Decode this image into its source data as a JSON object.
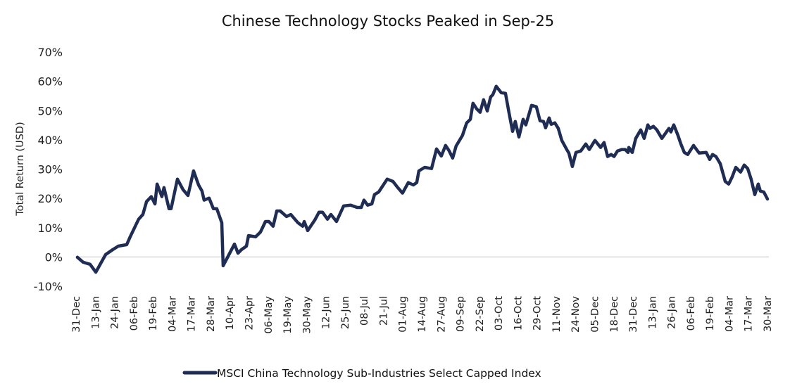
{
  "chart_data": {
    "type": "line",
    "title": "Chinese Technology Stocks Peaked in Sep-25",
    "xlabel": "",
    "ylabel": "Total Return (USD)",
    "ylim": [
      -10,
      70
    ],
    "yticks": [
      -10,
      0,
      10,
      20,
      30,
      40,
      50,
      60,
      70
    ],
    "ytick_labels": [
      "-10%",
      "0%",
      "10%",
      "20%",
      "30%",
      "40%",
      "50%",
      "60%",
      "70%"
    ],
    "xtick_labels": [
      "31-Dec",
      "13-Jan",
      "24-Jan",
      "06-Feb",
      "19-Feb",
      "04-Mar",
      "17-Mar",
      "28-Mar",
      "10-Apr",
      "23-Apr",
      "06-May",
      "19-May",
      "30-May",
      "12-Jun",
      "25-Jun",
      "08-Jul",
      "21-Jul",
      "01-Aug",
      "14-Aug",
      "27-Aug",
      "09-Sep",
      "22-Sep",
      "03-Oct",
      "16-Oct",
      "29-Oct",
      "11-Nov",
      "24-Nov",
      "05-Dec",
      "18-Dec",
      "31-Dec",
      "13-Jan",
      "26-Jan",
      "06-Feb",
      "19-Feb",
      "04-Mar",
      "17-Mar",
      "30-Mar"
    ],
    "x_units": "tick index (0 = first tick label, 36 = last tick label)",
    "grid": false,
    "zero_line": true,
    "legend_position": "bottom",
    "colors": {
      "line": "#1f2d54",
      "zero_line": "#d9d9d9"
    },
    "series": [
      {
        "name": "MSCI China Technology Sub-Industries Select Capped Index",
        "x": [
          0.07,
          0.37,
          0.73,
          1.03,
          1.54,
          1.91,
          2.2,
          2.64,
          2.82,
          3.26,
          3.48,
          3.67,
          3.92,
          4.11,
          4.22,
          4.47,
          4.58,
          4.84,
          4.95,
          5.28,
          5.57,
          5.83,
          6.12,
          6.38,
          6.56,
          6.67,
          6.93,
          7.15,
          7.33,
          7.59,
          7.66,
          8.25,
          8.43,
          8.61,
          8.87,
          8.98,
          9.35,
          9.6,
          9.86,
          10.04,
          10.26,
          10.45,
          10.63,
          10.96,
          11.18,
          11.55,
          11.8,
          11.88,
          12.06,
          12.43,
          12.65,
          12.83,
          13.09,
          13.27,
          13.56,
          13.93,
          14.3,
          14.63,
          14.85,
          14.99,
          15.18,
          15.4,
          15.54,
          15.76,
          16.2,
          16.5,
          16.75,
          17.0,
          17.3,
          17.56,
          17.74,
          17.85,
          18.15,
          18.51,
          18.77,
          19.02,
          19.24,
          19.43,
          19.61,
          19.79,
          20.12,
          20.34,
          20.53,
          20.67,
          20.86,
          21.04,
          21.22,
          21.41,
          21.59,
          21.7,
          21.88,
          22.14,
          22.36,
          22.54,
          22.73,
          22.87,
          23.06,
          23.28,
          23.42,
          23.72,
          23.97,
          24.16,
          24.34,
          24.45,
          24.63,
          24.74,
          24.93,
          25.11,
          25.29,
          25.55,
          25.66,
          25.84,
          26.03,
          26.28,
          26.54,
          26.72,
          27.02,
          27.31,
          27.49,
          27.68,
          27.86,
          28.01,
          28.19,
          28.41,
          28.59,
          28.74,
          28.78,
          28.96,
          29.14,
          29.4,
          29.58,
          29.77,
          29.88,
          30.06,
          30.24,
          30.5,
          30.87,
          30.97,
          31.12,
          31.34,
          31.49,
          31.67,
          31.85,
          32.15,
          32.44,
          32.81,
          32.99,
          33.14,
          33.32,
          33.54,
          33.8,
          33.98,
          34.16,
          34.35,
          34.6,
          34.79,
          34.97,
          35.15,
          35.34,
          35.52,
          35.63,
          35.81,
          36.0
        ],
        "values": [
          -0.1,
          -1.8,
          -2.5,
          -5.2,
          0.8,
          2.5,
          3.7,
          4.2,
          6.9,
          12.9,
          14.5,
          18.9,
          20.6,
          18.1,
          24.9,
          20.6,
          23.7,
          16.5,
          16.5,
          26.6,
          23.0,
          21.0,
          29.4,
          24.6,
          22.5,
          19.4,
          20.1,
          16.5,
          16.5,
          11.7,
          -3.0,
          4.4,
          1.3,
          2.5,
          3.7,
          7.3,
          6.9,
          8.5,
          12.1,
          12.1,
          10.5,
          15.7,
          15.7,
          13.8,
          14.5,
          11.7,
          10.5,
          12.1,
          9.0,
          12.6,
          15.3,
          15.3,
          12.9,
          14.5,
          12.1,
          17.4,
          17.7,
          16.9,
          16.9,
          19.4,
          17.7,
          18.1,
          21.3,
          22.2,
          26.6,
          25.8,
          23.7,
          21.8,
          25.4,
          24.6,
          25.4,
          29.4,
          30.6,
          30.2,
          36.9,
          34.5,
          38.1,
          36.2,
          33.8,
          37.9,
          41.5,
          45.8,
          47.0,
          52.5,
          50.6,
          49.4,
          53.7,
          49.9,
          54.7,
          55.4,
          58.3,
          56.1,
          55.9,
          49.4,
          42.9,
          46.3,
          41.0,
          47.0,
          45.1,
          51.8,
          51.3,
          46.5,
          46.3,
          44.1,
          47.5,
          45.3,
          45.8,
          43.9,
          39.8,
          36.7,
          35.5,
          30.9,
          35.7,
          36.2,
          38.6,
          36.7,
          39.8,
          37.4,
          39.1,
          34.3,
          35.0,
          34.3,
          36.2,
          36.7,
          36.7,
          35.7,
          37.4,
          35.7,
          40.5,
          43.4,
          40.5,
          45.1,
          43.9,
          44.6,
          43.4,
          40.5,
          43.9,
          42.7,
          45.1,
          41.5,
          38.6,
          35.7,
          35.0,
          38.1,
          35.5,
          35.7,
          33.3,
          35.0,
          34.3,
          31.9,
          25.8,
          24.9,
          27.3,
          30.6,
          29.0,
          31.4,
          30.2,
          26.6,
          21.3,
          24.9,
          22.5,
          22.2,
          19.8
        ]
      }
    ]
  }
}
